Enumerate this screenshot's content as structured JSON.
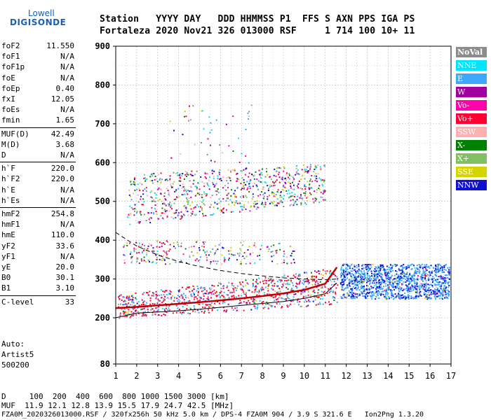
{
  "logo": {
    "top": "Lowell",
    "bottom": "DIGISONDE"
  },
  "header": {
    "row1": "Station   YYYY DAY   DDD HHMMSS P1  FFS S AXN PPS IGA PS",
    "row2": "Fortaleza 2020 Nov21 326 013000 RSF     1 714 100 10+ 11"
  },
  "params": [
    [
      {
        "label": "foF2",
        "value": "11.550"
      },
      {
        "label": "foF1",
        "value": "N/A"
      },
      {
        "label": "foF1p",
        "value": "N/A"
      },
      {
        "label": "foE",
        "value": "N/A"
      },
      {
        "label": "foEp",
        "value": "0.40"
      },
      {
        "label": "fxI",
        "value": "12.05"
      },
      {
        "label": "foEs",
        "value": "N/A"
      },
      {
        "label": "fmin",
        "value": "1.65"
      }
    ],
    [
      {
        "label": "MUF(D)",
        "value": "42.49"
      },
      {
        "label": "M(D)",
        "value": "3.68"
      },
      {
        "label": "D",
        "value": "N/A"
      }
    ],
    [
      {
        "label": "h`F",
        "value": "220.0"
      },
      {
        "label": "h`F2",
        "value": "220.0"
      },
      {
        "label": "h`E",
        "value": "N/A"
      },
      {
        "label": "h`Es",
        "value": "N/A"
      }
    ],
    [
      {
        "label": "hmF2",
        "value": "254.8"
      },
      {
        "label": "hmF1",
        "value": "N/A"
      },
      {
        "label": "hmE",
        "value": "110.0"
      },
      {
        "label": "yF2",
        "value": "33.6"
      },
      {
        "label": "yF1",
        "value": "N/A"
      },
      {
        "label": "yE",
        "value": "20.0"
      },
      {
        "label": "B0",
        "value": "30.1"
      },
      {
        "label": "B1",
        "value": "3.10"
      }
    ],
    [
      {
        "label": "C-level",
        "value": "33"
      }
    ]
  ],
  "auto": {
    "line1": "Auto:",
    "line2": "Artist5",
    "line3": "500200"
  },
  "footer": {
    "d_row": "D     100  200  400  600  800 1000 1500 3000 [km]",
    "muf_row": "MUF  11.9 12.1 12.8 13.9 15.5 17.9 24.7 42.5 [MHz]",
    "file_row": "FZA0M_2020326013000.RSF / 320fx256h 50 kHz 5.0 km / DPS-4 FZA0M 904 / 3.9 S 321.6 E   Ion2Png 1.3.20"
  },
  "legend": [
    {
      "label": "NoVal",
      "color": "#8c8c8c"
    },
    {
      "label": "NNE",
      "color": "#00e5ff"
    },
    {
      "label": "E",
      "color": "#3ea8ff"
    },
    {
      "label": "W",
      "color": "#a000a0"
    },
    {
      "label": "Vo-",
      "color": "#ff00aa"
    },
    {
      "label": "Vo+",
      "color": "#ff0033"
    },
    {
      "label": "SSW",
      "color": "#ffb0b0"
    },
    {
      "label": "X-",
      "color": "#008000"
    },
    {
      "label": "X+",
      "color": "#80c060"
    },
    {
      "label": "SSE",
      "color": "#d4d400"
    },
    {
      "label": "NNW",
      "color": "#1010d0"
    }
  ],
  "chart_data": {
    "type": "scatter",
    "x_ticks": [
      1,
      2,
      3,
      4,
      5,
      6,
      7,
      8,
      9,
      10,
      11,
      12,
      13,
      14,
      15,
      16,
      17
    ],
    "y_ticks": [
      80,
      200,
      300,
      400,
      500,
      600,
      700,
      800,
      900
    ],
    "xlim": [
      1,
      17
    ],
    "ylim": [
      80,
      900
    ],
    "grid": true,
    "profile_curve": [
      [
        1,
        200
      ],
      [
        2,
        212
      ],
      [
        3,
        215
      ],
      [
        4,
        218
      ],
      [
        5,
        222
      ],
      [
        6,
        227
      ],
      [
        7,
        232
      ],
      [
        8,
        237
      ],
      [
        9,
        242
      ],
      [
        10,
        250
      ],
      [
        11,
        262
      ],
      [
        11.55,
        290
      ]
    ],
    "trace_curve": [
      [
        1,
        225
      ],
      [
        2,
        228
      ],
      [
        3,
        232
      ],
      [
        4,
        236
      ],
      [
        5,
        240
      ],
      [
        6,
        245
      ],
      [
        7,
        250
      ],
      [
        8,
        256
      ],
      [
        9,
        263
      ],
      [
        10,
        272
      ],
      [
        11,
        288
      ],
      [
        11.55,
        330
      ]
    ],
    "upper_bound_curve": [
      [
        1,
        420
      ],
      [
        2,
        385
      ],
      [
        3,
        362
      ],
      [
        4,
        345
      ],
      [
        5,
        332
      ],
      [
        6,
        322
      ],
      [
        7,
        314
      ],
      [
        8,
        308
      ],
      [
        9,
        303
      ],
      [
        10,
        300
      ],
      [
        11,
        298
      ],
      [
        11.55,
        300
      ]
    ],
    "echo_regions": [
      {
        "x": [
          1.1,
          11.6
        ],
        "y_start": [
          200,
          235
        ],
        "y_end": [
          260,
          330
        ],
        "density": 900
      },
      {
        "x": [
          11.7,
          16.9
        ],
        "y_start": [
          250,
          250
        ],
        "y_end": [
          340,
          340
        ],
        "density": 1300
      },
      {
        "x": [
          1.5,
          11.0
        ],
        "y_start": [
          440,
          500
        ],
        "y_end": [
          570,
          600
        ],
        "density": 800
      },
      {
        "x": [
          1.3,
          9.5
        ],
        "y_start": [
          340,
          340
        ],
        "y_end": [
          400,
          400
        ],
        "density": 250
      },
      {
        "x": [
          3.5,
          7.5
        ],
        "y_start": [
          600,
          600
        ],
        "y_end": [
          750,
          750
        ],
        "density": 45
      }
    ]
  }
}
